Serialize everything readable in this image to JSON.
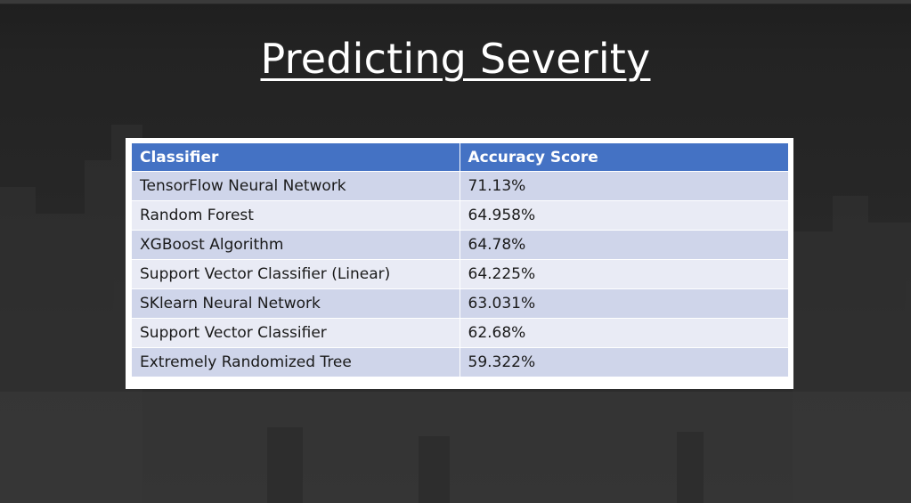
{
  "slide": {
    "title": "Predicting Severity"
  },
  "table": {
    "headers": {
      "classifier": "Classifier",
      "accuracy": "Accuracy Score"
    },
    "rows": [
      {
        "classifier": "TensorFlow Neural Network",
        "accuracy": "71.13%"
      },
      {
        "classifier": "Random Forest",
        "accuracy": "64.958%"
      },
      {
        "classifier": "XGBoost Algorithm",
        "accuracy": "64.78%"
      },
      {
        "classifier": "Support Vector Classifier (Linear)",
        "accuracy": "64.225%"
      },
      {
        "classifier": "SKlearn Neural Network",
        "accuracy": "63.031%"
      },
      {
        "classifier": "Support Vector Classifier",
        "accuracy": "62.68%"
      },
      {
        "classifier": "Extremely Randomized Tree",
        "accuracy": "59.322%"
      }
    ]
  },
  "colors": {
    "header_fill": "#4472c4",
    "row_band_dark": "#cfd5ea",
    "row_band_light": "#e9ebf5",
    "background": "#262626",
    "title_text": "#ffffff"
  }
}
